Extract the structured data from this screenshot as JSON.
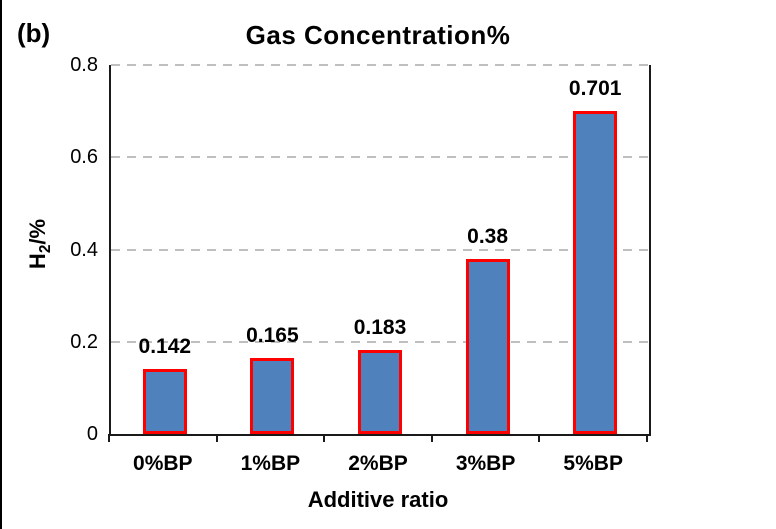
{
  "panel_label": "(b)",
  "chart_data": {
    "type": "bar",
    "title": "Gas Concentration%",
    "categories": [
      "0%BP",
      "1%BP",
      "2%BP",
      "3%BP",
      "5%BP"
    ],
    "values": [
      0.142,
      0.165,
      0.183,
      0.38,
      0.701
    ],
    "data_labels": [
      "0.142",
      "0.165",
      "0.183",
      "0.38",
      "0.701"
    ],
    "xlabel": "Additive ratio",
    "ylabel": {
      "pre": "H",
      "sub": "2",
      "post": "/%"
    },
    "ylim": [
      0,
      0.8
    ],
    "yticks": [
      0,
      0.2,
      0.4,
      0.6,
      0.8
    ],
    "ytick_labels": [
      "0",
      "0.2",
      "0.4",
      "0.6",
      "0.8"
    ],
    "grid": "horizontal-dashed",
    "legend": "none",
    "colors": {
      "bar_fill": "#4f81bd",
      "bar_border": "#fe0000",
      "gridline": "#bfbfbf",
      "axis": "#1a1a1a",
      "text": "#000000"
    }
  }
}
